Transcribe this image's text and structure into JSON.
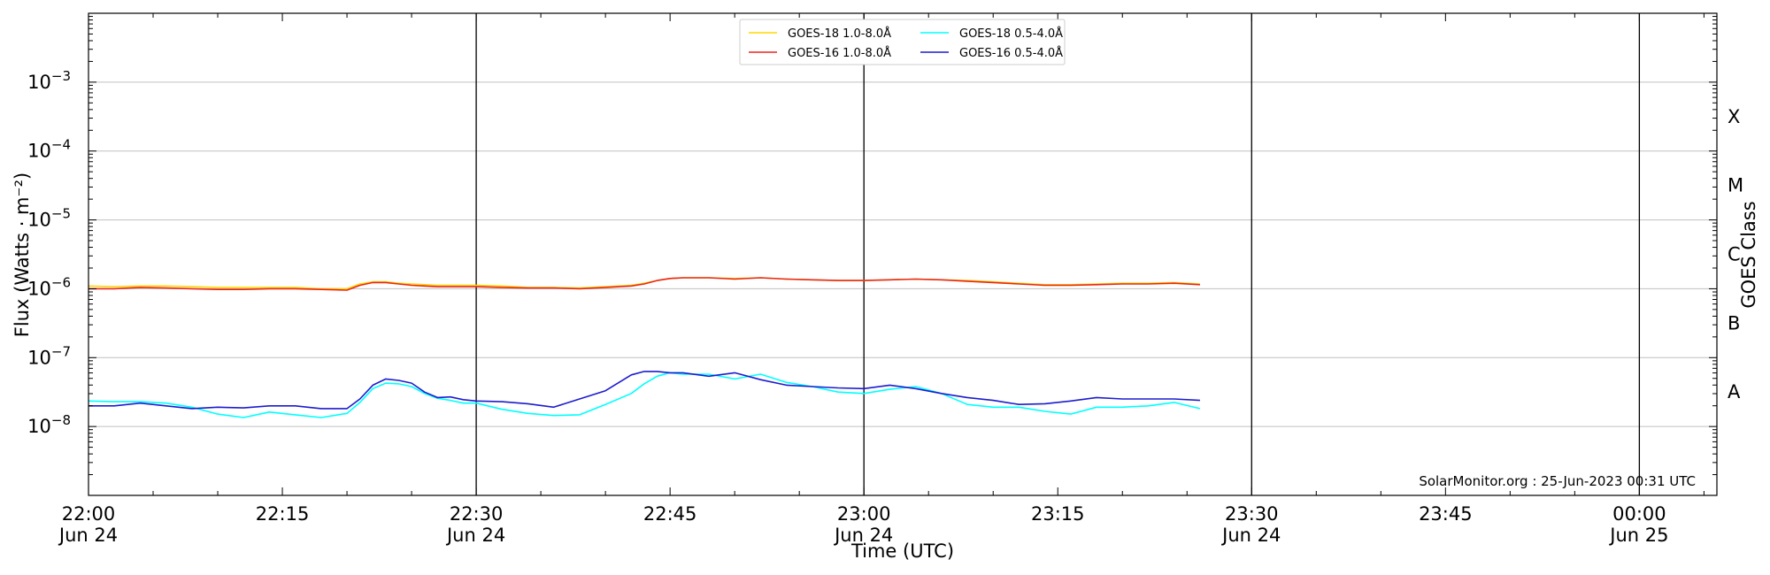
{
  "chart_data": {
    "type": "line",
    "xlabel": "Time (UTC)",
    "ylabel": "Flux (Watts · m⁻²)",
    "right_label": "GOES Class",
    "credit": "SolarMonitor.org : 25-Jun-2023 00:31 UTC",
    "x_range_minutes": [
      0,
      126
    ],
    "ylim_log10": [
      -9,
      -2
    ],
    "y_scale": "log",
    "grid": "horizontal",
    "legend_position": "top-center",
    "x_ticks": [
      {
        "minute": 0,
        "line1": "22:00",
        "line2": "Jun 24"
      },
      {
        "minute": 15,
        "line1": "22:15",
        "line2": ""
      },
      {
        "minute": 30,
        "line1": "22:30",
        "line2": "Jun 24"
      },
      {
        "minute": 45,
        "line1": "22:45",
        "line2": ""
      },
      {
        "minute": 60,
        "line1": "23:00",
        "line2": "Jun 24"
      },
      {
        "minute": 75,
        "line1": "23:15",
        "line2": ""
      },
      {
        "minute": 90,
        "line1": "23:30",
        "line2": "Jun 24"
      },
      {
        "minute": 105,
        "line1": "23:45",
        "line2": ""
      },
      {
        "minute": 120,
        "line1": "00:00",
        "line2": "Jun 25"
      }
    ],
    "vertical_lines_minutes": [
      30,
      60,
      90,
      120
    ],
    "y_ticks": [
      {
        "exp": -3,
        "label": "10",
        "sup": "−3"
      },
      {
        "exp": -4,
        "label": "10",
        "sup": "−4"
      },
      {
        "exp": -5,
        "label": "10",
        "sup": "−5"
      },
      {
        "exp": -6,
        "label": "10",
        "sup": "−6"
      },
      {
        "exp": -7,
        "label": "10",
        "sup": "−7"
      },
      {
        "exp": -8,
        "label": "10",
        "sup": "−8"
      }
    ],
    "goes_classes": [
      {
        "label": "X",
        "log10": -3.5
      },
      {
        "label": "M",
        "log10": -4.5
      },
      {
        "label": "C",
        "log10": -5.5
      },
      {
        "label": "B",
        "log10": -6.5
      },
      {
        "label": "A",
        "log10": -7.5
      }
    ],
    "time_minutes": [
      0,
      2,
      4,
      6,
      8,
      10,
      12,
      14,
      16,
      18,
      20,
      21,
      22,
      23,
      24,
      25,
      26,
      27,
      28,
      29,
      30,
      32,
      34,
      36,
      38,
      40,
      42,
      43,
      44,
      45,
      46,
      48,
      50,
      52,
      54,
      56,
      58,
      60,
      62,
      64,
      66,
      68,
      70,
      72,
      74,
      76,
      78,
      80,
      82,
      84,
      86
    ],
    "series": [
      {
        "name": "GOES-18 1.0-8.0Å",
        "color": "#ffd700",
        "log10": [
          -5.96,
          -5.97,
          -5.96,
          -5.96,
          -5.97,
          -5.98,
          -5.98,
          -5.98,
          -5.98,
          -6.0,
          -6.0,
          -5.93,
          -5.9,
          -5.9,
          -5.92,
          -5.93,
          -5.94,
          -5.95,
          -5.95,
          -5.95,
          -5.95,
          -5.96,
          -5.98,
          -5.98,
          -5.99,
          -5.97,
          -5.95,
          -5.92,
          -5.88,
          -5.85,
          -5.84,
          -5.84,
          -5.85,
          -5.84,
          -5.86,
          -5.87,
          -5.88,
          -5.88,
          -5.87,
          -5.86,
          -5.87,
          -5.88,
          -5.9,
          -5.92,
          -5.94,
          -5.94,
          -5.93,
          -5.92,
          -5.92,
          -5.91,
          -5.93
        ]
      },
      {
        "name": "GOES-16 1.0-8.0Å",
        "color": "#e8271b",
        "log10": [
          -6.0,
          -6.0,
          -5.98,
          -5.99,
          -6.0,
          -6.01,
          -6.01,
          -6.0,
          -6.0,
          -6.01,
          -6.02,
          -5.95,
          -5.91,
          -5.91,
          -5.93,
          -5.95,
          -5.96,
          -5.97,
          -5.97,
          -5.97,
          -5.97,
          -5.98,
          -5.99,
          -5.99,
          -6.0,
          -5.98,
          -5.96,
          -5.93,
          -5.88,
          -5.85,
          -5.84,
          -5.84,
          -5.86,
          -5.84,
          -5.86,
          -5.87,
          -5.88,
          -5.88,
          -5.87,
          -5.86,
          -5.87,
          -5.89,
          -5.91,
          -5.93,
          -5.95,
          -5.95,
          -5.94,
          -5.93,
          -5.93,
          -5.92,
          -5.94
        ]
      },
      {
        "name": "GOES-18 0.5-4.0Å",
        "color": "#00ffff",
        "log10": [
          -7.63,
          -7.64,
          -7.64,
          -7.66,
          -7.72,
          -7.82,
          -7.87,
          -7.79,
          -7.83,
          -7.87,
          -7.81,
          -7.65,
          -7.45,
          -7.37,
          -7.38,
          -7.42,
          -7.52,
          -7.59,
          -7.62,
          -7.66,
          -7.66,
          -7.75,
          -7.81,
          -7.84,
          -7.83,
          -7.68,
          -7.52,
          -7.38,
          -7.27,
          -7.22,
          -7.24,
          -7.24,
          -7.31,
          -7.24,
          -7.36,
          -7.42,
          -7.5,
          -7.52,
          -7.46,
          -7.42,
          -7.52,
          -7.68,
          -7.72,
          -7.72,
          -7.78,
          -7.82,
          -7.72,
          -7.72,
          -7.7,
          -7.65,
          -7.74
        ]
      },
      {
        "name": "GOES-16 0.5-4.0Å",
        "color": "#1c1ccf",
        "log10": [
          -7.7,
          -7.7,
          -7.66,
          -7.7,
          -7.74,
          -7.72,
          -7.73,
          -7.7,
          -7.7,
          -7.74,
          -7.74,
          -7.6,
          -7.4,
          -7.31,
          -7.33,
          -7.37,
          -7.5,
          -7.58,
          -7.57,
          -7.61,
          -7.63,
          -7.64,
          -7.67,
          -7.72,
          -7.6,
          -7.48,
          -7.25,
          -7.2,
          -7.2,
          -7.22,
          -7.22,
          -7.27,
          -7.22,
          -7.32,
          -7.4,
          -7.42,
          -7.44,
          -7.45,
          -7.4,
          -7.45,
          -7.52,
          -7.58,
          -7.62,
          -7.68,
          -7.67,
          -7.63,
          -7.58,
          -7.6,
          -7.6,
          -7.6,
          -7.62
        ]
      }
    ]
  }
}
